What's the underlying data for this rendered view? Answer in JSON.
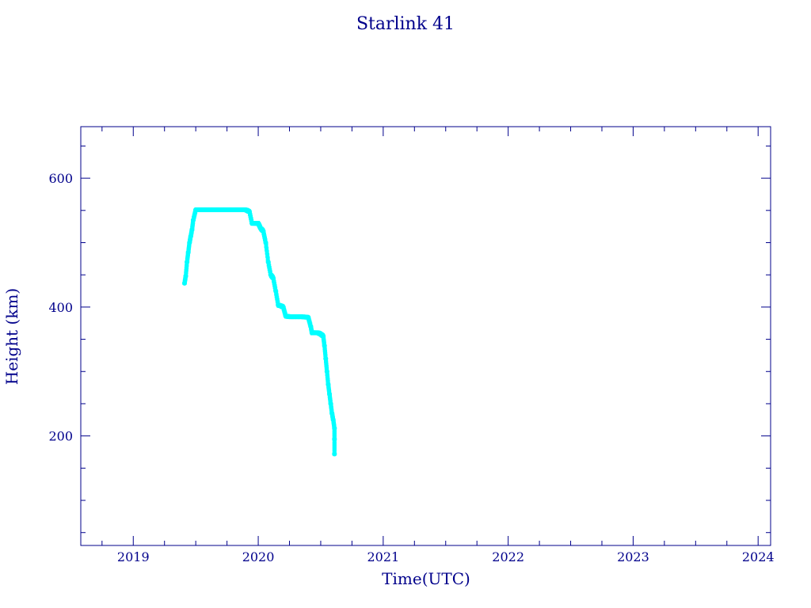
{
  "chart_data": {
    "type": "scatter",
    "title": "Starlink 41",
    "xlabel": "Time(UTC)",
    "ylabel": "Height (km)",
    "xlim": [
      2018.58,
      2024.1
    ],
    "ylim": [
      30,
      680
    ],
    "xticks": [
      2019,
      2020,
      2021,
      2022,
      2023,
      2024
    ],
    "yticks": [
      200,
      400,
      600
    ],
    "grid": false,
    "colors": {
      "axes": "#00008b",
      "marker": "#00ffff",
      "line": "#000000"
    },
    "series": [
      {
        "marker": "asterisk",
        "x": [
          2019.41,
          2019.42,
          2019.43,
          2019.44,
          2019.45,
          2019.46,
          2019.47,
          2019.48,
          2019.5,
          2019.55,
          2019.6,
          2019.65,
          2019.7,
          2019.75,
          2019.8,
          2019.85,
          2019.9,
          2019.93,
          2019.95,
          2019.98,
          2020.0,
          2020.02,
          2020.04,
          2020.06,
          2020.08,
          2020.1,
          2020.12,
          2020.14,
          2020.16,
          2020.18,
          2020.2,
          2020.22,
          2020.25,
          2020.3,
          2020.35,
          2020.4,
          2020.42,
          2020.43,
          2020.45,
          2020.48,
          2020.5,
          2020.52,
          2020.53,
          2020.54,
          2020.55,
          2020.56,
          2020.57,
          2020.58,
          2020.59,
          2020.6,
          2020.61,
          2020.61,
          2020.61
        ],
        "y": [
          437,
          448,
          470,
          485,
          500,
          510,
          520,
          535,
          551,
          551,
          551,
          551,
          551,
          551,
          551,
          551,
          551,
          548,
          530,
          530,
          530,
          522,
          518,
          500,
          470,
          450,
          445,
          425,
          403,
          402,
          400,
          386,
          385,
          385,
          385,
          384,
          370,
          360,
          360,
          360,
          358,
          355,
          340,
          320,
          300,
          280,
          265,
          250,
          235,
          225,
          212,
          195,
          172
        ]
      }
    ]
  }
}
